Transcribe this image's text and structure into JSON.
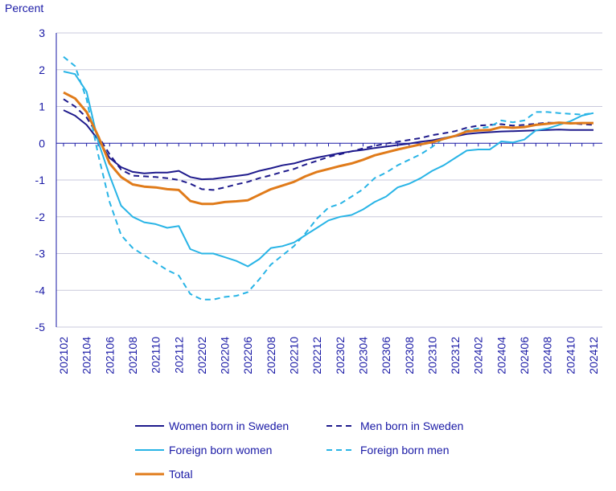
{
  "chart_data": {
    "type": "line",
    "ylabel": "Percent",
    "ylim": [
      -5,
      3
    ],
    "yticks": [
      3,
      2,
      1,
      0,
      -1,
      -2,
      -3,
      -4,
      -5
    ],
    "grid": true,
    "legend_position": "bottom",
    "x": [
      "202102",
      "202103",
      "202104",
      "202105",
      "202106",
      "202107",
      "202108",
      "202109",
      "202110",
      "202111",
      "202112",
      "202201",
      "202202",
      "202203",
      "202204",
      "202205",
      "202206",
      "202207",
      "202208",
      "202209",
      "202210",
      "202211",
      "202212",
      "202301",
      "202302",
      "202303",
      "202304",
      "202305",
      "202306",
      "202307",
      "202308",
      "202309",
      "202310",
      "202311",
      "202312",
      "202401",
      "202402",
      "202403",
      "202404",
      "202405",
      "202406",
      "202407",
      "202408",
      "202409",
      "202410",
      "202411",
      "202412"
    ],
    "xtick_labels": [
      "202102",
      "202104",
      "202106",
      "202108",
      "202110",
      "202112",
      "202202",
      "202204",
      "202206",
      "202208",
      "202210",
      "202212",
      "202302",
      "202304",
      "202306",
      "202308",
      "202310",
      "202312",
      "202402",
      "202404",
      "202406",
      "202408",
      "202410",
      "202412"
    ],
    "series": [
      {
        "name": "Women born in Sweden",
        "color": "#1e1a8c",
        "dash": "solid",
        "width": 2,
        "values": [
          0.9,
          0.75,
          0.5,
          0.1,
          -0.4,
          -0.65,
          -0.78,
          -0.82,
          -0.8,
          -0.8,
          -0.75,
          -0.92,
          -0.98,
          -0.97,
          -0.93,
          -0.89,
          -0.85,
          -0.75,
          -0.68,
          -0.6,
          -0.55,
          -0.46,
          -0.39,
          -0.33,
          -0.27,
          -0.22,
          -0.18,
          -0.13,
          -0.09,
          -0.05,
          -0.01,
          0.04,
          0.08,
          0.14,
          0.19,
          0.25,
          0.28,
          0.3,
          0.32,
          0.33,
          0.34,
          0.35,
          0.36,
          0.37,
          0.36,
          0.36,
          0.36
        ]
      },
      {
        "name": "Men born in Sweden",
        "color": "#1e1a8c",
        "dash": "dashed",
        "width": 2,
        "values": [
          1.2,
          1.0,
          0.7,
          0.2,
          -0.3,
          -0.72,
          -0.88,
          -0.9,
          -0.92,
          -0.95,
          -1.0,
          -1.1,
          -1.25,
          -1.27,
          -1.2,
          -1.12,
          -1.05,
          -0.95,
          -0.87,
          -0.78,
          -0.7,
          -0.58,
          -0.48,
          -0.37,
          -0.3,
          -0.22,
          -0.14,
          -0.07,
          -0.01,
          0.04,
          0.09,
          0.14,
          0.22,
          0.27,
          0.33,
          0.42,
          0.48,
          0.5,
          0.52,
          0.48,
          0.5,
          0.53,
          0.56,
          0.55,
          0.54,
          0.52,
          0.5
        ]
      },
      {
        "name": "Foreign born women",
        "color": "#28b4e6",
        "dash": "solid",
        "width": 2,
        "values": [
          1.95,
          1.88,
          1.4,
          0.05,
          -0.88,
          -1.7,
          -2.0,
          -2.15,
          -2.2,
          -2.3,
          -2.25,
          -2.88,
          -3.0,
          -3.0,
          -3.1,
          -3.2,
          -3.35,
          -3.15,
          -2.85,
          -2.8,
          -2.7,
          -2.5,
          -2.3,
          -2.1,
          -2.0,
          -1.95,
          -1.8,
          -1.6,
          -1.45,
          -1.2,
          -1.1,
          -0.95,
          -0.75,
          -0.6,
          -0.4,
          -0.2,
          -0.17,
          -0.17,
          0.05,
          0.02,
          0.1,
          0.35,
          0.4,
          0.5,
          0.6,
          0.75,
          0.82
        ]
      },
      {
        "name": "Foreign born men",
        "color": "#28b4e6",
        "dash": "dashed",
        "width": 2,
        "values": [
          2.35,
          2.1,
          1.2,
          -0.3,
          -1.6,
          -2.5,
          -2.85,
          -3.05,
          -3.25,
          -3.45,
          -3.6,
          -4.1,
          -4.25,
          -4.25,
          -4.18,
          -4.15,
          -4.05,
          -3.7,
          -3.3,
          -3.05,
          -2.8,
          -2.45,
          -2.05,
          -1.75,
          -1.65,
          -1.45,
          -1.25,
          -0.95,
          -0.8,
          -0.6,
          -0.45,
          -0.3,
          -0.1,
          0.15,
          0.2,
          0.35,
          0.4,
          0.45,
          0.62,
          0.57,
          0.62,
          0.85,
          0.85,
          0.82,
          0.8,
          0.78,
          0.82
        ]
      },
      {
        "name": "Total",
        "color": "#e07b1a",
        "dash": "solid",
        "width": 3,
        "values": [
          1.38,
          1.22,
          0.85,
          0.2,
          -0.55,
          -0.92,
          -1.12,
          -1.18,
          -1.2,
          -1.25,
          -1.27,
          -1.57,
          -1.65,
          -1.65,
          -1.6,
          -1.58,
          -1.55,
          -1.4,
          -1.25,
          -1.15,
          -1.05,
          -0.9,
          -0.78,
          -0.7,
          -0.62,
          -0.55,
          -0.45,
          -0.33,
          -0.25,
          -0.17,
          -0.1,
          -0.03,
          0.03,
          0.12,
          0.2,
          0.32,
          0.35,
          0.36,
          0.44,
          0.42,
          0.44,
          0.5,
          0.53,
          0.56,
          0.54,
          0.55,
          0.55
        ]
      }
    ]
  }
}
